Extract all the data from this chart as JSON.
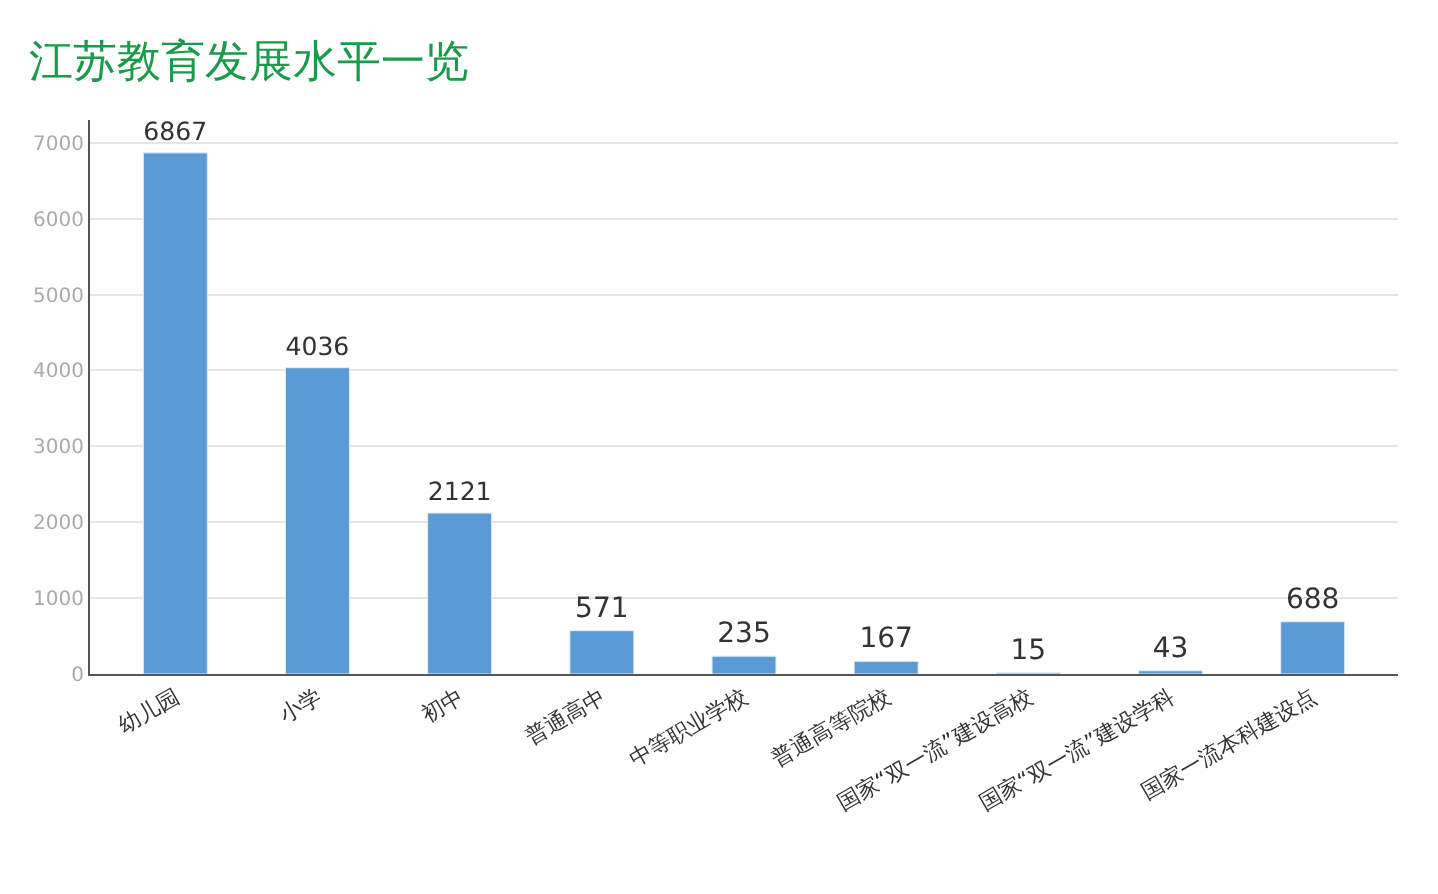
{
  "chart_data": {
    "type": "bar",
    "title": "江苏教育发展水平一览",
    "categories": [
      "幼儿园",
      "小学",
      "初中",
      "普通高中",
      "中等职业学校",
      "普通高等院校",
      "国家“双一流”建设高校",
      "国家“双一流”建设学科",
      "国家一流本科建设点"
    ],
    "values": [
      6867,
      4036,
      2121,
      571,
      235,
      167,
      15,
      43,
      688
    ],
    "color": "#5b9bd5",
    "ylim": [
      0,
      7300
    ],
    "yticks": [
      0,
      1000,
      2000,
      3000,
      4000,
      5000,
      6000,
      7000
    ],
    "grid": "y",
    "data_labels": true
  }
}
